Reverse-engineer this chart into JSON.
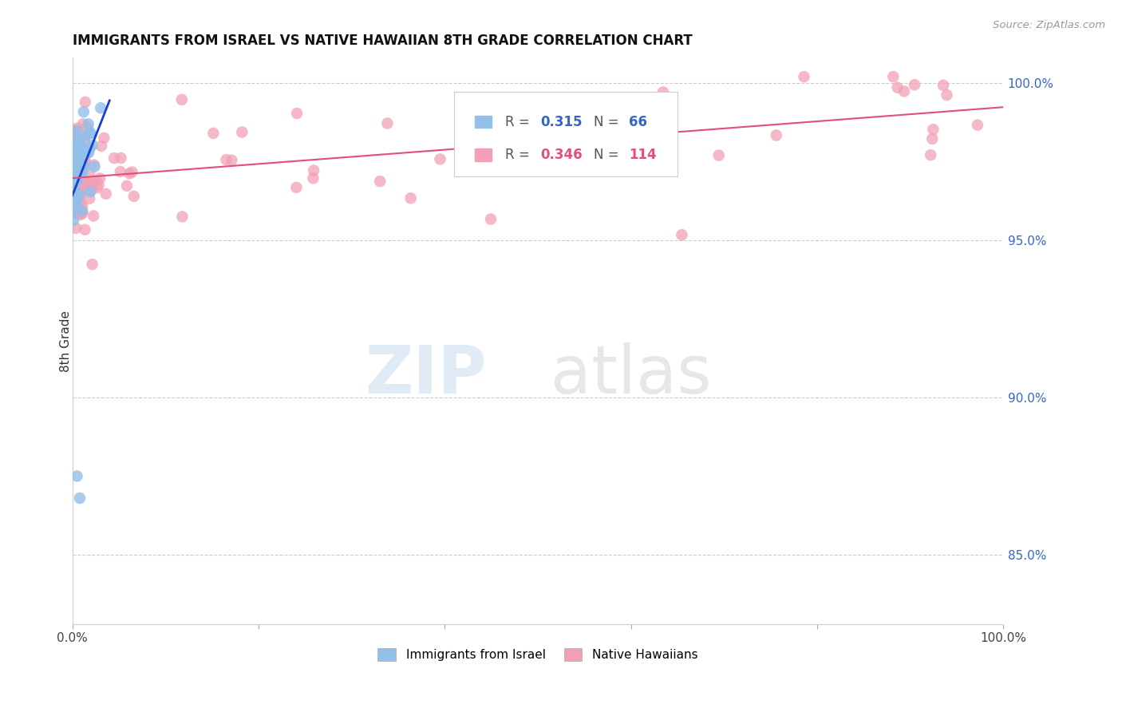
{
  "title": "IMMIGRANTS FROM ISRAEL VS NATIVE HAWAIIAN 8TH GRADE CORRELATION CHART",
  "source": "Source: ZipAtlas.com",
  "ylabel": "8th Grade",
  "ylabel_right_ticks": [
    "100.0%",
    "95.0%",
    "90.0%",
    "85.0%"
  ],
  "ylabel_right_vals": [
    1.0,
    0.95,
    0.9,
    0.85
  ],
  "xmin": 0.0,
  "xmax": 1.0,
  "ymin": 0.828,
  "ymax": 1.008,
  "legend_label1": "Immigrants from Israel",
  "legend_label2": "Native Hawaiians",
  "blue_color": "#92C0EA",
  "pink_color": "#F2A0B5",
  "blue_line_color": "#1A3ECC",
  "pink_line_color": "#E0507A",
  "r1": "0.315",
  "n1": "66",
  "r2": "0.346",
  "n2": "114"
}
